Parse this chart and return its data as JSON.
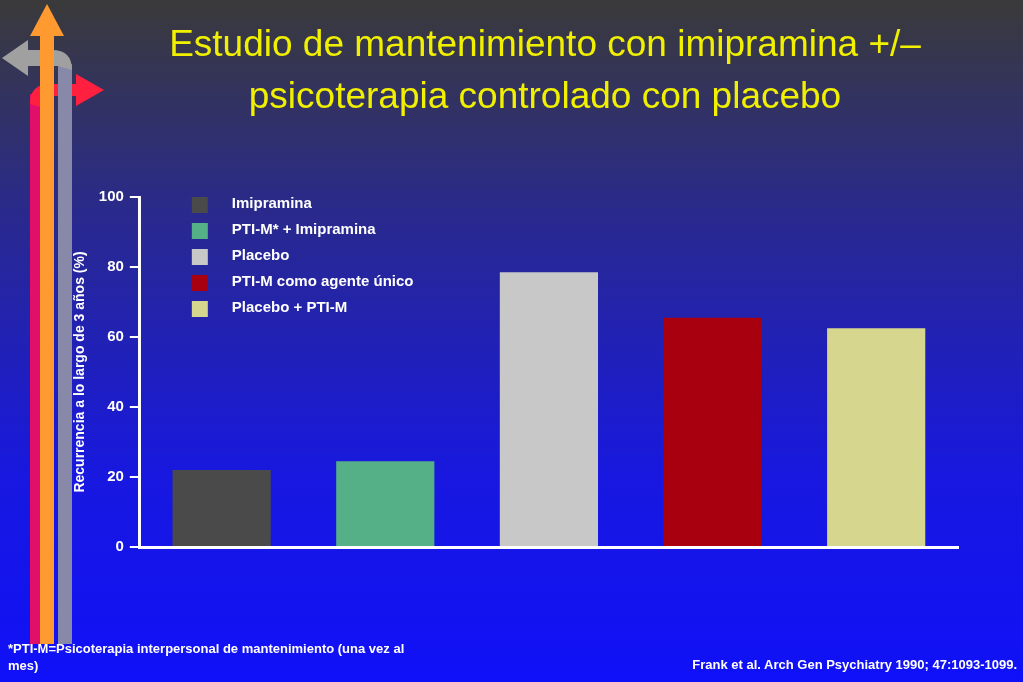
{
  "chart_data": {
    "type": "bar",
    "title": "Estudio de mantenimiento con imipramina +/– psicoterapia controlado con placebo",
    "ylabel": "Recurrencia a lo largo de 3 años (%)",
    "categories": [
      null,
      null,
      null,
      null,
      null
    ],
    "series": [
      {
        "name": "Imipramina",
        "color": "#4a4a4a",
        "values": [
          22,
          null,
          null,
          null,
          null
        ]
      },
      {
        "name": "PTI-M* + Imipramina",
        "color": "#55b088",
        "values": [
          null,
          24.5,
          null,
          null,
          null
        ]
      },
      {
        "name": "Placebo",
        "color": "#c8c8c8",
        "values": [
          null,
          null,
          78.5,
          null,
          null
        ]
      },
      {
        "name": "PTI-M como agente único",
        "color": "#a8000e",
        "values": [
          null,
          null,
          null,
          65.5,
          null
        ]
      },
      {
        "name": "Placebo + PTI-M",
        "color": "#d6d68e",
        "values": [
          null,
          null,
          null,
          null,
          62.5
        ]
      }
    ],
    "ylim": [
      0,
      100
    ],
    "yticks": [
      0,
      20,
      40,
      60,
      80,
      100
    ],
    "grid": false,
    "legend": "top left",
    "tick_labels": "y",
    "annotations": [
      "*PTI-M=Psicoterapia interpersonal de mantenimiento (una vez al mes)",
      "Frank et al. Arch Gen Psychiatry 1990; 47:1093-1099."
    ]
  }
}
